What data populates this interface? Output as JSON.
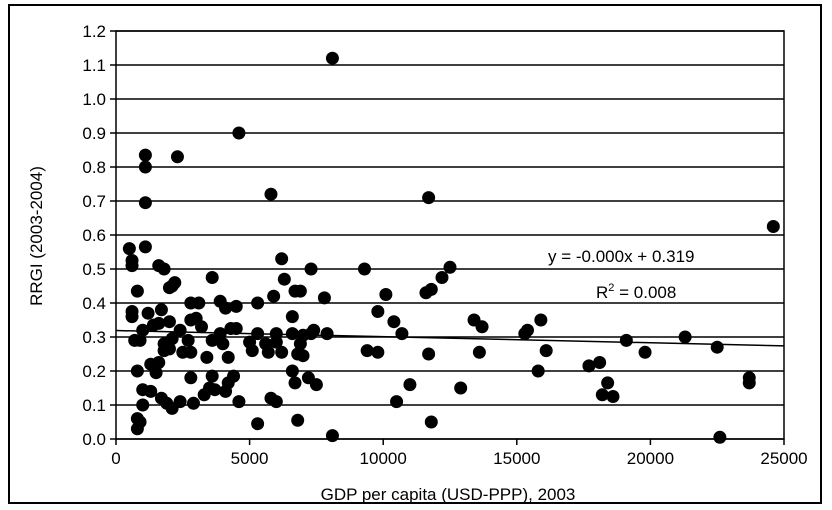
{
  "chart_data": {
    "type": "scatter",
    "title": "",
    "xlabel": "GDP per capita (USD-PPP), 2003",
    "ylabel": "RRGI (2003-2004)",
    "xlim": [
      0,
      25000
    ],
    "ylim": [
      0.0,
      1.2
    ],
    "x_ticks": [
      "0",
      "5000",
      "10000",
      "15000",
      "20000",
      "25000"
    ],
    "y_ticks": [
      "0.0",
      "0.1",
      "0.2",
      "0.3",
      "0.4",
      "0.5",
      "0.6",
      "0.7",
      "0.8",
      "0.9",
      "1.0",
      "1.1",
      "1.2"
    ],
    "grid": "horizontal",
    "colors": {
      "points": "#000000",
      "gridlines": "#000000",
      "trendline": "#000000"
    },
    "trendline": {
      "slope": -1.8e-06,
      "intercept": 0.319
    },
    "annotations": {
      "equation": "y = -0.000x + 0.319",
      "r2_label": "R",
      "r2_sup": "2",
      "r2_value": " = 0.008"
    },
    "points": [
      [
        8100,
        1.12
      ],
      [
        4600,
        0.9
      ],
      [
        1100,
        0.835
      ],
      [
        2300,
        0.83
      ],
      [
        1100,
        0.8
      ],
      [
        5800,
        0.72
      ],
      [
        11700,
        0.71
      ],
      [
        1100,
        0.695
      ],
      [
        24600,
        0.625
      ],
      [
        500,
        0.56
      ],
      [
        1100,
        0.565
      ],
      [
        600,
        0.525
      ],
      [
        600,
        0.51
      ],
      [
        1600,
        0.51
      ],
      [
        1800,
        0.5
      ],
      [
        6200,
        0.53
      ],
      [
        7300,
        0.5
      ],
      [
        9300,
        0.5
      ],
      [
        12500,
        0.505
      ],
      [
        12200,
        0.475
      ],
      [
        3600,
        0.475
      ],
      [
        6300,
        0.47
      ],
      [
        2100,
        0.45
      ],
      [
        2200,
        0.46
      ],
      [
        2000,
        0.445
      ],
      [
        11600,
        0.43
      ],
      [
        11800,
        0.44
      ],
      [
        6700,
        0.435
      ],
      [
        6900,
        0.435
      ],
      [
        800,
        0.435
      ],
      [
        10100,
        0.425
      ],
      [
        7800,
        0.415
      ],
      [
        5900,
        0.42
      ],
      [
        2800,
        0.4
      ],
      [
        3100,
        0.4
      ],
      [
        3900,
        0.405
      ],
      [
        4500,
        0.39
      ],
      [
        5300,
        0.4
      ],
      [
        600,
        0.375
      ],
      [
        1200,
        0.37
      ],
      [
        1700,
        0.38
      ],
      [
        2800,
        0.35
      ],
      [
        3000,
        0.355
      ],
      [
        4100,
        0.385
      ],
      [
        9800,
        0.375
      ],
      [
        13400,
        0.35
      ],
      [
        15900,
        0.35
      ],
      [
        10400,
        0.345
      ],
      [
        6600,
        0.36
      ],
      [
        4300,
        0.325
      ],
      [
        600,
        0.36
      ],
      [
        1000,
        0.32
      ],
      [
        1400,
        0.335
      ],
      [
        1600,
        0.34
      ],
      [
        2000,
        0.345
      ],
      [
        2400,
        0.32
      ],
      [
        3200,
        0.33
      ],
      [
        3900,
        0.31
      ],
      [
        4500,
        0.325
      ],
      [
        5300,
        0.31
      ],
      [
        6000,
        0.31
      ],
      [
        6600,
        0.31
      ],
      [
        7000,
        0.305
      ],
      [
        7300,
        0.31
      ],
      [
        7400,
        0.32
      ],
      [
        7900,
        0.31
      ],
      [
        10700,
        0.31
      ],
      [
        13700,
        0.33
      ],
      [
        15300,
        0.31
      ],
      [
        15400,
        0.32
      ],
      [
        700,
        0.29
      ],
      [
        900,
        0.29
      ],
      [
        1800,
        0.28
      ],
      [
        2100,
        0.295
      ],
      [
        2700,
        0.29
      ],
      [
        3600,
        0.29
      ],
      [
        4000,
        0.28
      ],
      [
        5000,
        0.285
      ],
      [
        5600,
        0.28
      ],
      [
        6000,
        0.285
      ],
      [
        6900,
        0.28
      ],
      [
        19100,
        0.29
      ],
      [
        21300,
        0.3
      ],
      [
        800,
        0.2
      ],
      [
        1300,
        0.22
      ],
      [
        1600,
        0.225
      ],
      [
        1800,
        0.26
      ],
      [
        2000,
        0.265
      ],
      [
        2500,
        0.255
      ],
      [
        2800,
        0.255
      ],
      [
        3400,
        0.24
      ],
      [
        4200,
        0.24
      ],
      [
        5100,
        0.26
      ],
      [
        5700,
        0.255
      ],
      [
        6200,
        0.255
      ],
      [
        6800,
        0.25
      ],
      [
        7000,
        0.245
      ],
      [
        9400,
        0.26
      ],
      [
        9800,
        0.255
      ],
      [
        11700,
        0.25
      ],
      [
        13600,
        0.255
      ],
      [
        16100,
        0.26
      ],
      [
        19800,
        0.255
      ],
      [
        22500,
        0.27
      ],
      [
        800,
        0.06
      ],
      [
        800,
        0.03
      ],
      [
        900,
        0.05
      ],
      [
        1000,
        0.1
      ],
      [
        1000,
        0.145
      ],
      [
        1300,
        0.14
      ],
      [
        1500,
        0.195
      ],
      [
        1700,
        0.12
      ],
      [
        1900,
        0.105
      ],
      [
        2100,
        0.09
      ],
      [
        2400,
        0.11
      ],
      [
        2800,
        0.18
      ],
      [
        2900,
        0.105
      ],
      [
        3300,
        0.13
      ],
      [
        3500,
        0.15
      ],
      [
        3600,
        0.185
      ],
      [
        3700,
        0.145
      ],
      [
        4100,
        0.14
      ],
      [
        4200,
        0.165
      ],
      [
        4400,
        0.185
      ],
      [
        4600,
        0.11
      ],
      [
        5300,
        0.045
      ],
      [
        5800,
        0.12
      ],
      [
        6000,
        0.11
      ],
      [
        6600,
        0.2
      ],
      [
        6700,
        0.165
      ],
      [
        6800,
        0.055
      ],
      [
        7200,
        0.18
      ],
      [
        7500,
        0.16
      ],
      [
        8100,
        0.01
      ],
      [
        10500,
        0.11
      ],
      [
        11000,
        0.16
      ],
      [
        11800,
        0.05
      ],
      [
        12900,
        0.15
      ],
      [
        15800,
        0.2
      ],
      [
        17700,
        0.215
      ],
      [
        18100,
        0.225
      ],
      [
        18200,
        0.13
      ],
      [
        18400,
        0.165
      ],
      [
        18600,
        0.125
      ],
      [
        22600,
        0.005
      ],
      [
        23700,
        0.18
      ],
      [
        23700,
        0.165
      ]
    ]
  }
}
